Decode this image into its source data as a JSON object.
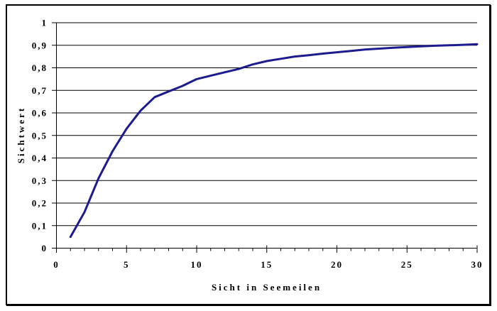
{
  "chart": {
    "y_axis_title": "Sichtwert",
    "x_axis_title": "Sicht in Seemeilen",
    "colors": {
      "line": "#1c1c8e",
      "grid": "#000000",
      "text": "#000000",
      "frame": "#000000",
      "background": "#ffffff"
    }
  },
  "chart_data": {
    "type": "line",
    "title": "",
    "xlabel": "Sicht in Seemeilen",
    "ylabel": "Sichtwert",
    "xlim": [
      0,
      30
    ],
    "ylim": [
      0,
      1
    ],
    "grid": "horizontal",
    "legend": "none",
    "x_ticks_major": [
      0,
      5,
      10,
      15,
      20,
      25,
      30
    ],
    "x_tick_labels": [
      "0",
      "5",
      "10",
      "15",
      "20",
      "25",
      "30"
    ],
    "x_minor_tick_step": 1,
    "y_ticks": [
      0,
      0.1,
      0.2,
      0.3,
      0.4,
      0.5,
      0.6,
      0.7,
      0.8,
      0.9,
      1
    ],
    "y_tick_labels": [
      "0",
      "0,1",
      "0,2",
      "0,3",
      "0,4",
      "0,5",
      "0,6",
      "0,7",
      "0,8",
      "0,9",
      "1"
    ],
    "series": [
      {
        "name": "Sichtwert",
        "color": "#1c1c8e",
        "points": [
          [
            1,
            0.05
          ],
          [
            2,
            0.16
          ],
          [
            3,
            0.31
          ],
          [
            4,
            0.43
          ],
          [
            5,
            0.53
          ],
          [
            6,
            0.61
          ],
          [
            7,
            0.67
          ],
          [
            8,
            0.695
          ],
          [
            9,
            0.72
          ],
          [
            10,
            0.75
          ],
          [
            11,
            0.765
          ],
          [
            12,
            0.78
          ],
          [
            13,
            0.795
          ],
          [
            14,
            0.815
          ],
          [
            15,
            0.83
          ],
          [
            16,
            0.84
          ],
          [
            17,
            0.85
          ],
          [
            18,
            0.856
          ],
          [
            19,
            0.863
          ],
          [
            20,
            0.869
          ],
          [
            21,
            0.875
          ],
          [
            22,
            0.881
          ],
          [
            23,
            0.885
          ],
          [
            24,
            0.889
          ],
          [
            25,
            0.892
          ],
          [
            26,
            0.895
          ],
          [
            27,
            0.898
          ],
          [
            28,
            0.9
          ],
          [
            29,
            0.902
          ],
          [
            30,
            0.905
          ]
        ]
      }
    ]
  }
}
